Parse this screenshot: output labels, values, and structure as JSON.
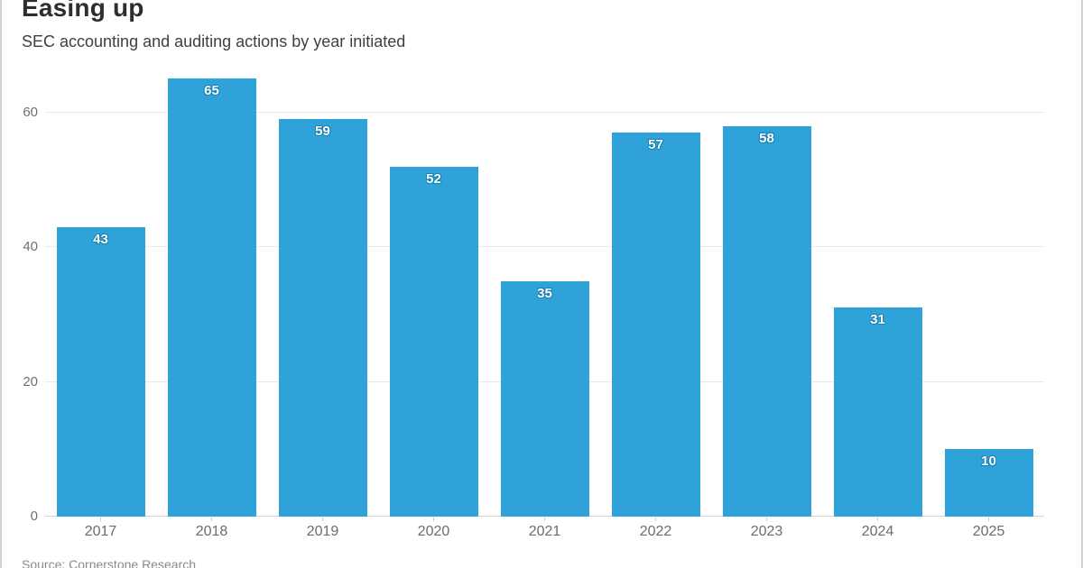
{
  "chart_data": {
    "type": "bar",
    "title": "Easing up",
    "subtitle": "SEC accounting and auditing actions by year initiated",
    "source": "Source: Cornerstone Research",
    "categories": [
      "2017",
      "2018",
      "2019",
      "2020",
      "2021",
      "2022",
      "2023",
      "2024",
      "2025"
    ],
    "values": [
      43,
      65,
      59,
      52,
      35,
      57,
      58,
      31,
      10
    ],
    "xlabel": "",
    "ylabel": "",
    "yticks": [
      0,
      20,
      40,
      60
    ],
    "ylim": [
      0,
      66.8
    ],
    "grid": true,
    "legend": "none",
    "bar_color": "#2fa3d9",
    "value_label_color": "#ffffff",
    "value_label_outline_color": "#1680b2",
    "gridline_color": "#e9e9e9",
    "axis_label_color": "#6c6c6c"
  }
}
